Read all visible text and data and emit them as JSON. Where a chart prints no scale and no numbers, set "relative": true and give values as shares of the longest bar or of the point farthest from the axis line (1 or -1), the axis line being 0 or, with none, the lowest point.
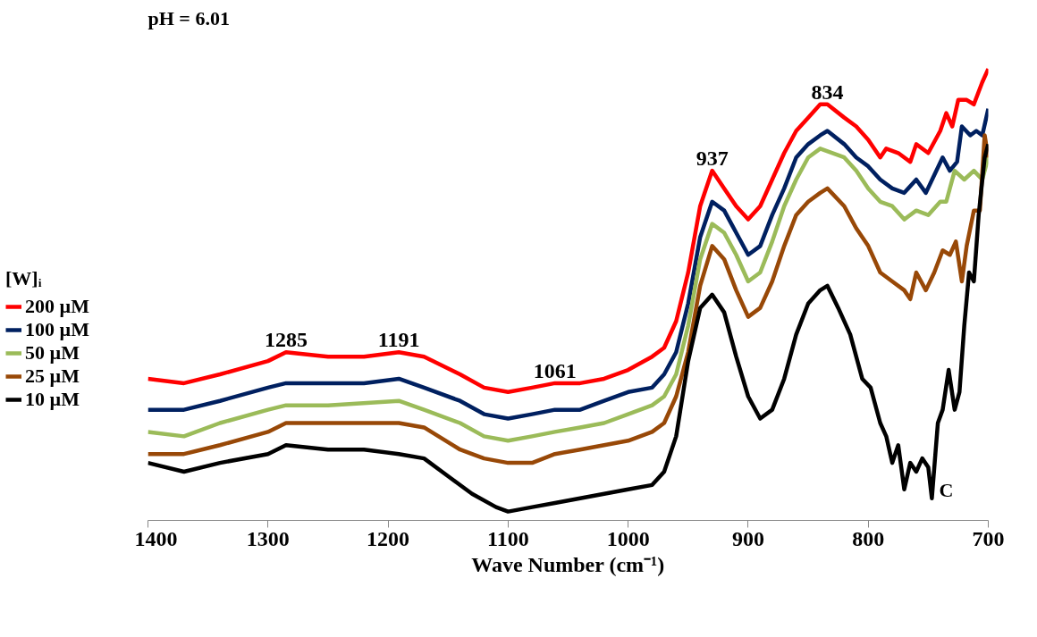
{
  "chart_data": {
    "type": "line",
    "title": "pH = 6.01",
    "xlabel": "Wave Number (cm⁻¹)",
    "relative": true,
    "xlim": [
      1400,
      700
    ],
    "xticks": [
      1400,
      1300,
      1200,
      1100,
      1000,
      900,
      800,
      700
    ],
    "grid": false,
    "legend": "left",
    "legend_title": "[W]ᵢ",
    "marker": "none",
    "line_style": "solid",
    "annotations": [
      {
        "text": "1285",
        "x": 1285,
        "y": 0.36
      },
      {
        "text": "1191",
        "x": 1191,
        "y": 0.36
      },
      {
        "text": "1061",
        "x": 1061,
        "y": 0.29
      },
      {
        "text": "937",
        "x": 930,
        "y": 0.77
      },
      {
        "text": "834",
        "x": 834,
        "y": 0.92
      },
      "C"
    ],
    "series": [
      {
        "name": "200 µM",
        "color": "#ff0000",
        "x": [
          1400,
          1370,
          1340,
          1300,
          1285,
          1250,
          1220,
          1191,
          1170,
          1140,
          1120,
          1100,
          1080,
          1061,
          1040,
          1020,
          1000,
          980,
          970,
          960,
          950,
          940,
          930,
          920,
          910,
          900,
          890,
          880,
          870,
          860,
          850,
          840,
          834,
          820,
          810,
          800,
          790,
          785,
          775,
          765,
          760,
          750,
          740,
          735,
          730,
          725,
          718,
          712,
          705,
          700
        ],
        "values": [
          0.3,
          0.29,
          0.31,
          0.34,
          0.36,
          0.35,
          0.35,
          0.36,
          0.35,
          0.31,
          0.28,
          0.27,
          0.28,
          0.29,
          0.29,
          0.3,
          0.32,
          0.35,
          0.37,
          0.43,
          0.54,
          0.69,
          0.77,
          0.73,
          0.69,
          0.66,
          0.69,
          0.75,
          0.81,
          0.86,
          0.89,
          0.92,
          0.92,
          0.89,
          0.87,
          0.84,
          0.8,
          0.82,
          0.81,
          0.79,
          0.83,
          0.81,
          0.86,
          0.9,
          0.87,
          0.93,
          0.93,
          0.92,
          0.97,
          1.0
        ]
      },
      {
        "name": "100 µM",
        "color": "#002060",
        "x": [
          1400,
          1370,
          1340,
          1300,
          1285,
          1250,
          1220,
          1191,
          1170,
          1140,
          1120,
          1100,
          1080,
          1061,
          1040,
          1020,
          1000,
          980,
          970,
          960,
          950,
          940,
          930,
          920,
          910,
          900,
          890,
          880,
          870,
          860,
          850,
          840,
          834,
          820,
          810,
          800,
          790,
          780,
          770,
          760,
          752,
          745,
          738,
          732,
          726,
          722,
          715,
          710,
          705,
          700
        ],
        "values": [
          0.23,
          0.23,
          0.25,
          0.28,
          0.29,
          0.29,
          0.29,
          0.3,
          0.28,
          0.25,
          0.22,
          0.21,
          0.22,
          0.23,
          0.23,
          0.25,
          0.27,
          0.28,
          0.31,
          0.36,
          0.47,
          0.62,
          0.7,
          0.68,
          0.63,
          0.58,
          0.6,
          0.67,
          0.73,
          0.8,
          0.83,
          0.85,
          0.86,
          0.83,
          0.8,
          0.78,
          0.75,
          0.73,
          0.72,
          0.75,
          0.72,
          0.76,
          0.8,
          0.77,
          0.79,
          0.87,
          0.85,
          0.86,
          0.85,
          0.91
        ]
      },
      {
        "name": "50 µM",
        "color": "#9bbb59",
        "x": [
          1400,
          1370,
          1340,
          1300,
          1285,
          1250,
          1191,
          1170,
          1140,
          1120,
          1100,
          1080,
          1061,
          1040,
          1020,
          1000,
          980,
          970,
          960,
          950,
          940,
          930,
          920,
          910,
          900,
          890,
          880,
          870,
          860,
          850,
          840,
          820,
          810,
          800,
          790,
          780,
          770,
          760,
          750,
          740,
          735,
          728,
          720,
          712,
          705,
          700
        ],
        "values": [
          0.18,
          0.17,
          0.2,
          0.23,
          0.24,
          0.24,
          0.25,
          0.23,
          0.2,
          0.17,
          0.16,
          0.17,
          0.18,
          0.19,
          0.2,
          0.22,
          0.24,
          0.26,
          0.31,
          0.42,
          0.57,
          0.65,
          0.63,
          0.58,
          0.52,
          0.54,
          0.61,
          0.69,
          0.75,
          0.8,
          0.82,
          0.8,
          0.77,
          0.73,
          0.7,
          0.69,
          0.66,
          0.68,
          0.67,
          0.7,
          0.7,
          0.77,
          0.75,
          0.77,
          0.75,
          0.8
        ]
      },
      {
        "name": "25 µM",
        "color": "#984807",
        "x": [
          1400,
          1370,
          1340,
          1300,
          1285,
          1250,
          1191,
          1170,
          1140,
          1120,
          1100,
          1080,
          1061,
          1040,
          1020,
          1000,
          980,
          970,
          960,
          950,
          940,
          930,
          920,
          910,
          900,
          890,
          880,
          870,
          860,
          850,
          840,
          834,
          820,
          810,
          800,
          790,
          780,
          770,
          765,
          760,
          752,
          745,
          738,
          732,
          727,
          722,
          718,
          712,
          707,
          703,
          700
        ],
        "values": [
          0.13,
          0.13,
          0.15,
          0.18,
          0.2,
          0.2,
          0.2,
          0.19,
          0.14,
          0.12,
          0.11,
          0.11,
          0.13,
          0.14,
          0.15,
          0.16,
          0.18,
          0.2,
          0.26,
          0.36,
          0.51,
          0.6,
          0.57,
          0.5,
          0.44,
          0.46,
          0.52,
          0.6,
          0.67,
          0.7,
          0.72,
          0.73,
          0.69,
          0.64,
          0.6,
          0.54,
          0.52,
          0.5,
          0.48,
          0.54,
          0.5,
          0.54,
          0.59,
          0.58,
          0.61,
          0.52,
          0.6,
          0.68,
          0.68,
          0.85,
          0.8
        ]
      },
      {
        "name": "10 µM",
        "color": "#000000",
        "x": [
          1400,
          1370,
          1340,
          1300,
          1285,
          1250,
          1220,
          1191,
          1170,
          1150,
          1130,
          1110,
          1100,
          1080,
          1060,
          1040,
          1020,
          1000,
          980,
          970,
          960,
          950,
          940,
          930,
          920,
          910,
          900,
          890,
          880,
          870,
          860,
          850,
          840,
          834,
          825,
          815,
          805,
          798,
          790,
          785,
          780,
          775,
          770,
          765,
          760,
          755,
          750,
          747,
          742,
          738,
          733,
          728,
          724,
          720,
          716,
          712,
          708,
          703,
          700
        ],
        "values": [
          0.11,
          0.09,
          0.11,
          0.13,
          0.15,
          0.14,
          0.14,
          0.13,
          0.12,
          0.08,
          0.04,
          0.01,
          0.0,
          0.01,
          0.02,
          0.03,
          0.04,
          0.05,
          0.06,
          0.09,
          0.17,
          0.34,
          0.46,
          0.49,
          0.45,
          0.35,
          0.26,
          0.21,
          0.23,
          0.3,
          0.4,
          0.47,
          0.5,
          0.51,
          0.46,
          0.4,
          0.3,
          0.28,
          0.2,
          0.17,
          0.11,
          0.15,
          0.05,
          0.11,
          0.09,
          0.12,
          0.1,
          0.03,
          0.2,
          0.23,
          0.32,
          0.23,
          0.27,
          0.42,
          0.54,
          0.52,
          0.67,
          0.8,
          0.83
        ]
      }
    ]
  }
}
